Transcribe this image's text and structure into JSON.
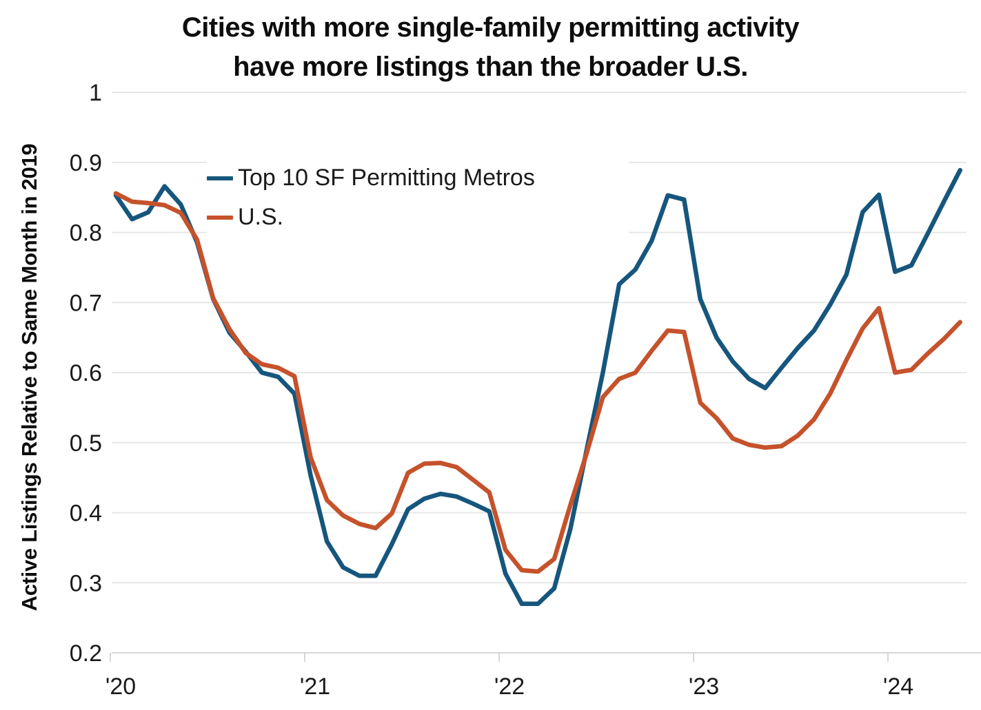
{
  "header": {
    "title_line1": "Cities with more single-family permitting activity",
    "title_line2": "have more listings than the broader U.S."
  },
  "colors": {
    "metros_line": "#16567d",
    "us_line": "#c5522b",
    "grid": "#e7e7e7",
    "axis": "#d6d6d6",
    "text": "#1a1a1a"
  },
  "chart_data": {
    "type": "line",
    "title": "Cities with more single-family permitting activity have more listings than the broader U.S.",
    "xlabel": "",
    "ylabel": "Active Listings Relative to Same Month in 2019",
    "x_start": "2020-01",
    "x_end": "2024-05",
    "x_frequency": "monthly",
    "x_tick_labels": [
      "'20",
      "'21",
      "'22",
      "'23",
      "'24"
    ],
    "y_ticks": [
      1,
      0.9,
      0.8,
      0.7,
      0.6,
      0.5,
      0.4,
      0.3,
      0.2
    ],
    "y_tick_labels": [
      "1",
      "0.9",
      "0.8",
      "0.7",
      "0.6",
      "0.5",
      "0.4",
      "0.3",
      "0.2"
    ],
    "ylim": [
      0.2,
      1.0
    ],
    "grid": "horizontal",
    "legend_position": "upper-left-inside",
    "series": [
      {
        "name": "Top 10 SF Permitting Metros",
        "color": "#16567d",
        "values": [
          0.853,
          0.819,
          0.829,
          0.866,
          0.84,
          0.786,
          0.705,
          0.657,
          0.63,
          0.6,
          0.594,
          0.57,
          0.453,
          0.359,
          0.322,
          0.31,
          0.31,
          0.355,
          0.405,
          0.42,
          0.427,
          0.423,
          0.413,
          0.402,
          0.313,
          0.27,
          0.27,
          0.292,
          0.377,
          0.49,
          0.6,
          0.726,
          0.747,
          0.788,
          0.853,
          0.847,
          0.705,
          0.65,
          0.616,
          0.591,
          0.578,
          0.607,
          0.635,
          0.66,
          0.697,
          0.74,
          0.829,
          0.854,
          0.744,
          0.753,
          0.798,
          0.844,
          0.889
        ]
      },
      {
        "name": "U.S.",
        "color": "#c5522b",
        "values": [
          0.856,
          0.844,
          0.842,
          0.839,
          0.828,
          0.79,
          0.706,
          0.662,
          0.628,
          0.612,
          0.607,
          0.595,
          0.479,
          0.418,
          0.396,
          0.384,
          0.378,
          0.399,
          0.457,
          0.47,
          0.471,
          0.465,
          0.447,
          0.429,
          0.347,
          0.318,
          0.316,
          0.334,
          0.411,
          0.485,
          0.565,
          0.591,
          0.6,
          0.631,
          0.66,
          0.658,
          0.557,
          0.535,
          0.506,
          0.497,
          0.493,
          0.495,
          0.51,
          0.533,
          0.57,
          0.618,
          0.663,
          0.692,
          0.6,
          0.604,
          0.627,
          0.648,
          0.672
        ]
      }
    ]
  }
}
